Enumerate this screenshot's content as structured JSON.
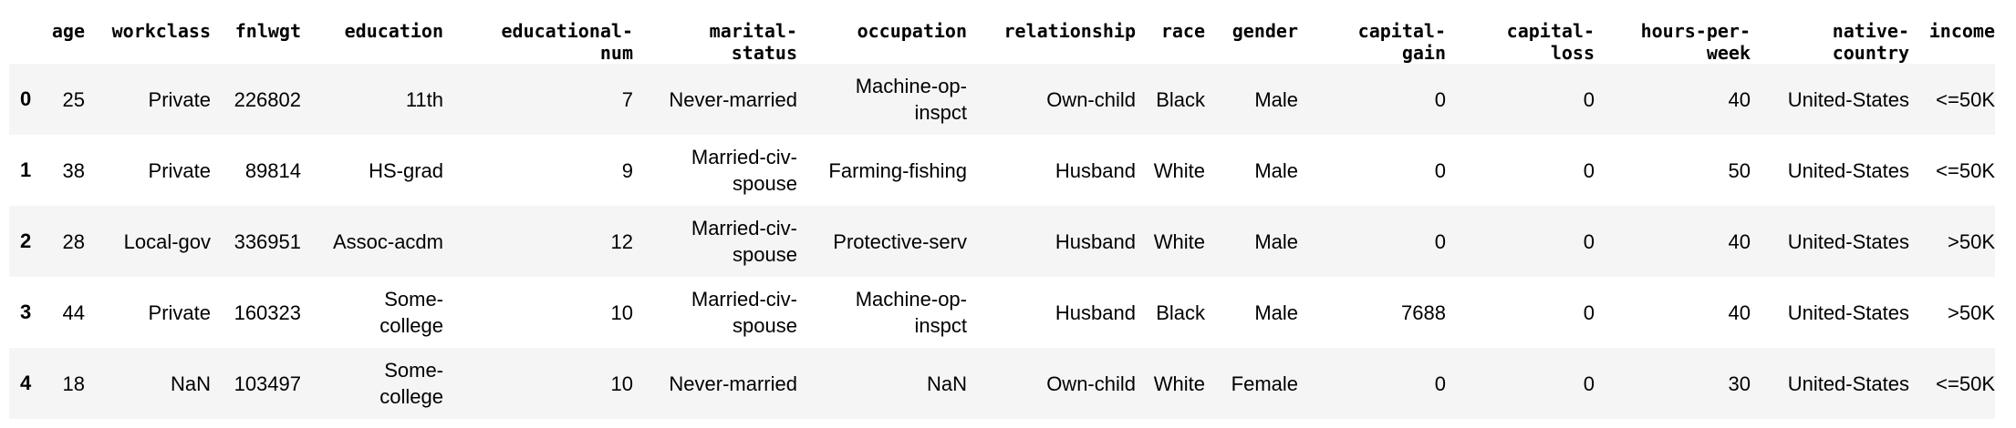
{
  "table": {
    "columns": [
      "",
      "age",
      "workclass",
      "fnlwgt",
      "education",
      "educational-num",
      "marital-status",
      "occupation",
      "relationship",
      "race",
      "gender",
      "capital-gain",
      "capital-loss",
      "hours-per-week",
      "native-country",
      "income"
    ],
    "header_display": [
      "",
      "age",
      "workclass",
      "fnlwgt",
      "education",
      "educational-\nnum",
      "marital-\nstatus",
      "occupation",
      "relationship",
      "race",
      "gender",
      "capital-\ngain",
      "capital-\nloss",
      "hours-per-\nweek",
      "native-\ncountry",
      "income"
    ],
    "rows": [
      {
        "index": "0",
        "cells": [
          "25",
          "Private",
          "226802",
          "11th",
          "7",
          "Never-married",
          "Machine-op-\ninspct",
          "Own-child",
          "Black",
          "Male",
          "0",
          "0",
          "40",
          "United-States",
          "<=50K"
        ]
      },
      {
        "index": "1",
        "cells": [
          "38",
          "Private",
          "89814",
          "HS-grad",
          "9",
          "Married-civ-\nspouse",
          "Farming-fishing",
          "Husband",
          "White",
          "Male",
          "0",
          "0",
          "50",
          "United-States",
          "<=50K"
        ]
      },
      {
        "index": "2",
        "cells": [
          "28",
          "Local-gov",
          "336951",
          "Assoc-acdm",
          "12",
          "Married-civ-\nspouse",
          "Protective-serv",
          "Husband",
          "White",
          "Male",
          "0",
          "0",
          "40",
          "United-States",
          ">50K"
        ]
      },
      {
        "index": "3",
        "cells": [
          "44",
          "Private",
          "160323",
          "Some-\ncollege",
          "10",
          "Married-civ-\nspouse",
          "Machine-op-\ninspct",
          "Husband",
          "Black",
          "Male",
          "7688",
          "0",
          "40",
          "United-States",
          ">50K"
        ]
      },
      {
        "index": "4",
        "cells": [
          "18",
          "NaN",
          "103497",
          "Some-\ncollege",
          "10",
          "Never-married",
          "NaN",
          "Own-child",
          "White",
          "Female",
          "0",
          "0",
          "30",
          "United-States",
          "<=50K"
        ]
      }
    ]
  },
  "colors": {
    "row_stripe": "#f5f5f5",
    "row_plain": "#ffffff",
    "text": "#000000"
  }
}
